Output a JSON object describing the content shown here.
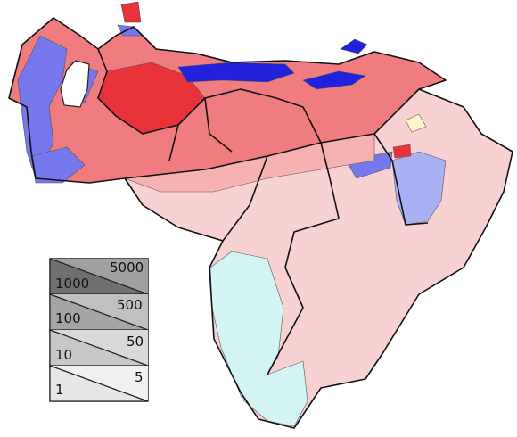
{
  "colors": {
    "red_strong": "#e8333b",
    "red_mid": "#f07c80",
    "red_light": "#f6b1b1",
    "red_pale": "#f8d2d2",
    "blue_strong": "#2222dd",
    "blue_mid": "#7777ee",
    "blue_light": "#aab0f4",
    "cyan_pale": "#d4f4f4",
    "yellow_pale": "#fff6c8",
    "legend_shades": [
      "#707070",
      "#a5a5a5",
      "#c8c8c8",
      "#e6e6e6"
    ]
  },
  "legend": {
    "rows": [
      {
        "low": "1000",
        "high": "5000"
      },
      {
        "low": "100",
        "high": "500"
      },
      {
        "low": "10",
        "high": "50"
      },
      {
        "low": "1",
        "high": "5"
      }
    ]
  },
  "icons": {
    "map": "choropleth-map",
    "legend": "density-scale"
  }
}
